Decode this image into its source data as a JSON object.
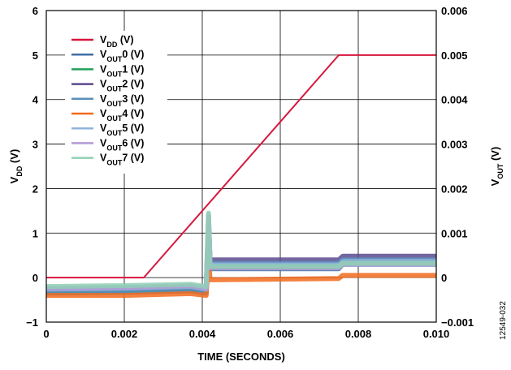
{
  "figure_id": "12549-032",
  "chart_data": {
    "type": "line",
    "title": "",
    "xlabel": "TIME (SECONDS)",
    "ylabel_left": {
      "main": "V",
      "sub": "DD",
      "unit": " (V)"
    },
    "ylabel_right": {
      "main": "V",
      "sub": "OUT",
      "unit": " (V)"
    },
    "xlim": [
      0,
      0.01
    ],
    "ylim_left": [
      -1,
      6
    ],
    "ylim_right": [
      -0.001,
      0.006
    ],
    "x_ticks": [
      "0",
      "0.002",
      "0.004",
      "0.006",
      "0.008",
      "0.010"
    ],
    "y_ticks_left": [
      "−1",
      "0",
      "1",
      "2",
      "3",
      "4",
      "5",
      "6"
    ],
    "y_ticks_right": [
      "−0.001",
      "0",
      "0.001",
      "0.002",
      "0.003",
      "0.004",
      "0.005",
      "0.006"
    ],
    "grid": true,
    "legend_position": "top-left",
    "series": [
      {
        "name": {
          "main": "V",
          "sub": "DD",
          "unit": " (V)"
        },
        "axis": "left",
        "color": "#d6173d",
        "x": [
          0,
          0.0025,
          0.0075,
          0.01
        ],
        "y": [
          0,
          0,
          5,
          5
        ]
      },
      {
        "name": {
          "main": "V",
          "sub": "OUT",
          "unit": "0 (V)"
        },
        "axis": "right",
        "color": "#3f6fa6",
        "x": [
          0,
          0.002,
          0.0037,
          0.0041,
          0.00416,
          0.0042,
          0.0075,
          0.0076,
          0.01
        ],
        "y": [
          -0.00035,
          -0.00033,
          -0.0003,
          -0.00035,
          0.0012,
          0.0002,
          0.0002,
          0.0003,
          0.0003
        ]
      },
      {
        "name": {
          "main": "V",
          "sub": "OUT",
          "unit": "1 (V)"
        },
        "axis": "right",
        "color": "#23a05a",
        "x": [
          0,
          0.002,
          0.0037,
          0.0041,
          0.00416,
          0.0042,
          0.0075,
          0.0076,
          0.01
        ],
        "y": [
          -0.0003,
          -0.00028,
          -0.00025,
          -0.0003,
          0.0011,
          0.00025,
          0.00025,
          0.00035,
          0.00035
        ]
      },
      {
        "name": {
          "main": "V",
          "sub": "OUT",
          "unit": "2 (V)"
        },
        "axis": "right",
        "color": "#5b4a8f",
        "x": [
          0,
          0.002,
          0.0037,
          0.0041,
          0.00416,
          0.0042,
          0.0075,
          0.0076,
          0.01
        ],
        "y": [
          -0.00028,
          -0.00026,
          -0.00022,
          -0.00028,
          0.0013,
          0.0004,
          0.0004,
          0.00048,
          0.00048
        ]
      },
      {
        "name": {
          "main": "V",
          "sub": "OUT",
          "unit": "3 (V)"
        },
        "axis": "right",
        "color": "#5b8fb8",
        "x": [
          0,
          0.002,
          0.0037,
          0.0041,
          0.00416,
          0.0042,
          0.0075,
          0.0076,
          0.01
        ],
        "y": [
          -0.00032,
          -0.0003,
          -0.00027,
          -0.00032,
          0.00125,
          0.00032,
          0.00032,
          0.0004,
          0.0004
        ]
      },
      {
        "name": {
          "main": "V",
          "sub": "OUT",
          "unit": "4 (V)"
        },
        "axis": "right",
        "color": "#f26b1d",
        "x": [
          0,
          0.002,
          0.0037,
          0.0041,
          0.00416,
          0.0042,
          0.0075,
          0.0076,
          0.01
        ],
        "y": [
          -0.0004,
          -0.0004,
          -0.00036,
          -0.0004,
          0.0005,
          -5e-05,
          -2e-05,
          5e-05,
          5e-05
        ]
      },
      {
        "name": {
          "main": "V",
          "sub": "OUT",
          "unit": "5 (V)"
        },
        "axis": "right",
        "color": "#8fb3dc",
        "x": [
          0,
          0.002,
          0.0037,
          0.0041,
          0.00416,
          0.0042,
          0.0075,
          0.0076,
          0.01
        ],
        "y": [
          -0.00026,
          -0.00024,
          -0.0002,
          -0.00026,
          0.00135,
          0.00028,
          0.00028,
          0.00036,
          0.00036
        ]
      },
      {
        "name": {
          "main": "V",
          "sub": "OUT",
          "unit": "6 (V)"
        },
        "axis": "right",
        "color": "#b39bd6",
        "x": [
          0,
          0.002,
          0.0037,
          0.0041,
          0.00416,
          0.0042,
          0.0075,
          0.0076,
          0.01
        ],
        "y": [
          -0.00024,
          -0.00022,
          -0.00018,
          -0.00024,
          0.0014,
          0.00022,
          0.00022,
          0.0003,
          0.0003
        ]
      },
      {
        "name": {
          "main": "V",
          "sub": "OUT",
          "unit": "7 (V)"
        },
        "axis": "right",
        "color": "#8fd0b5",
        "x": [
          0,
          0.002,
          0.0037,
          0.0041,
          0.00416,
          0.0042,
          0.0075,
          0.0076,
          0.01
        ],
        "y": [
          -0.0002,
          -0.00018,
          -0.00015,
          -0.0002,
          0.00145,
          0.00025,
          0.00025,
          0.00032,
          0.00032
        ]
      }
    ]
  }
}
